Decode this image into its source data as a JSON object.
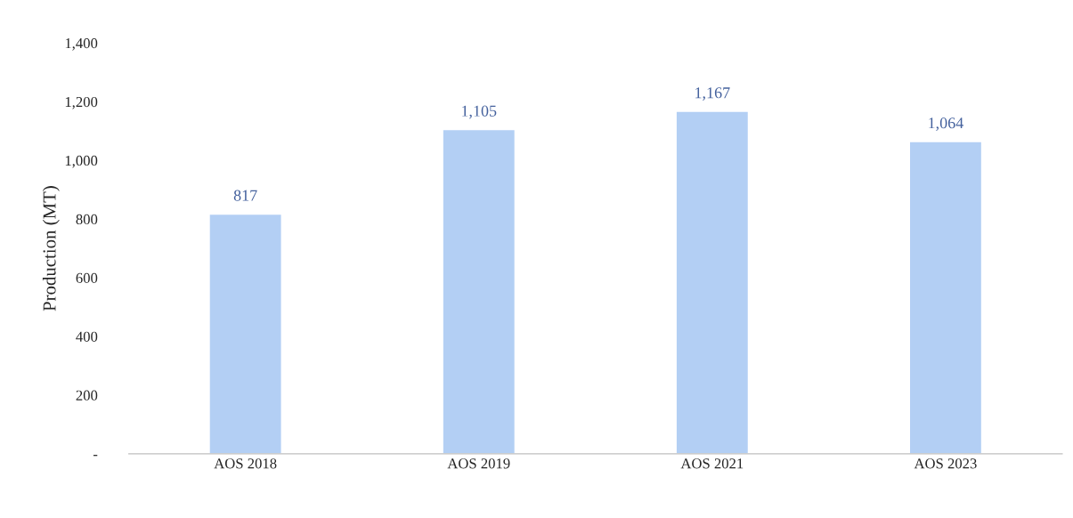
{
  "chart_data": {
    "type": "bar",
    "ylabel": "Production (MT)",
    "categories": [
      "AOS 2018",
      "AOS 2019",
      "AOS 2021",
      "AOS 2023"
    ],
    "values": [
      817,
      1105,
      1167,
      1064
    ],
    "value_labels": [
      "817",
      "1,105",
      "1,167",
      "1,064"
    ],
    "color": "#b3cff4",
    "ylim": [
      0,
      1400
    ],
    "yticks": [
      {
        "value": 0,
        "label": "-"
      },
      200,
      400,
      600,
      800,
      {
        "value": 1000,
        "label": "1,000"
      },
      {
        "value": 1200,
        "label": "1,200"
      },
      {
        "value": 1400,
        "label": "1,400"
      }
    ],
    "grid": false,
    "legend": false
  }
}
